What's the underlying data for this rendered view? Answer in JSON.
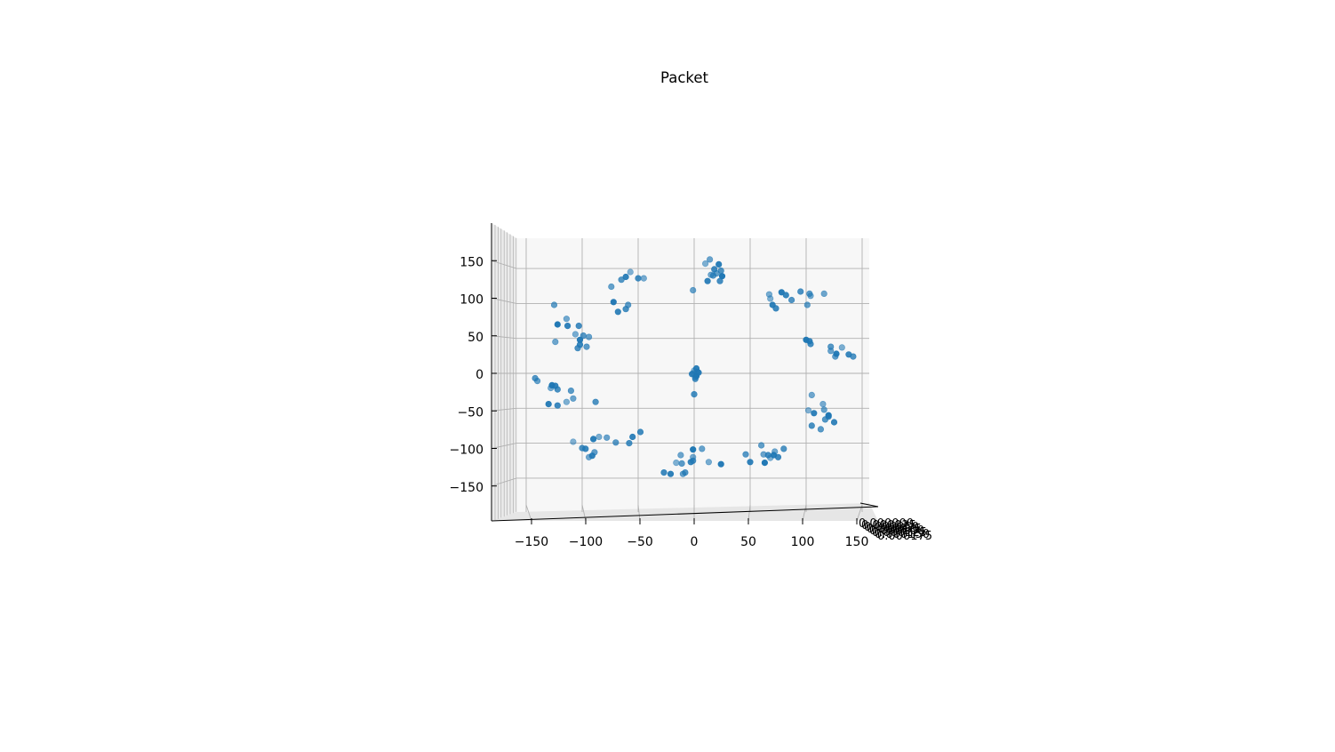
{
  "chart_data": {
    "type": "scatter",
    "projection": "3d",
    "title": "Packet",
    "xlabel": "",
    "ylabel": "",
    "zlabel": "",
    "xlim": [
      -175,
      165
    ],
    "ylim": [
      -185,
      185
    ],
    "x_ticks": [
      -150,
      -100,
      -50,
      0,
      50,
      100,
      150
    ],
    "y_ticks": [
      -150,
      -100,
      -50,
      0,
      50,
      100,
      150
    ],
    "z_tick_labels": [
      "0.000000",
      "0.000025",
      "0.000050",
      "0.000075",
      "0.000100",
      "0.000125",
      "0.000150",
      "0.000175"
    ],
    "grid": true,
    "legend": "none",
    "colors": {
      "marker": "#1f77b4",
      "pane": "#f2f2f2",
      "grid": "#b0b0b0",
      "axis": "#000000"
    },
    "series": [
      {
        "x": [
          -57,
          -61,
          -50,
          -65,
          -74,
          -45,
          -72,
          -68,
          -61,
          -59,
          14,
          10,
          22,
          18,
          24,
          20,
          15,
          25,
          12,
          23,
          17,
          -1,
          67,
          78,
          82,
          95,
          103,
          116,
          68,
          70,
          73,
          87,
          101,
          104,
          100,
          103,
          104,
          122,
          122,
          132,
          127,
          138,
          142,
          126,
          105,
          102,
          107,
          120,
          117,
          116,
          115,
          120,
          125,
          105,
          113,
          62,
          68,
          71,
          75,
          80,
          60,
          72,
          63,
          50,
          66,
          46,
          7,
          13,
          24,
          -3,
          -1,
          -11,
          -12,
          -16,
          -21,
          -27,
          -8,
          -10,
          -1,
          -1,
          -55,
          -58,
          -70,
          -78,
          -85,
          -90,
          -97,
          -100,
          -89,
          -94,
          -108,
          -91,
          -48,
          -142,
          -140,
          -128,
          -127,
          -124,
          -122,
          -110,
          -108,
          -114,
          -130,
          -122,
          -88,
          -125,
          -114,
          -122,
          -113,
          -103,
          -99,
          -94,
          -106,
          -102,
          -102,
          -104,
          -96,
          -124,
          0,
          2,
          -2,
          3,
          1,
          -1,
          2,
          4,
          0,
          1
        ],
        "y": [
          145,
          138,
          136,
          134,
          124,
          136,
          102,
          88,
          92,
          98,
          163,
          157,
          156,
          149,
          147,
          143,
          141,
          139,
          132,
          132,
          140,
          119,
          113,
          116,
          112,
          117,
          114,
          114,
          107,
          98,
          93,
          105,
          98,
          111,
          48,
          46,
          42,
          38,
          32,
          37,
          28,
          27,
          24,
          24,
          -31,
          -53,
          -57,
          -62,
          -66,
          -52,
          -44,
          -60,
          -70,
          -75,
          -80,
          -116,
          -121,
          -117,
          -120,
          -108,
          -103,
          -112,
          -128,
          -127,
          -117,
          -116,
          -108,
          -127,
          -130,
          -127,
          -125,
          -129,
          -117,
          -128,
          -144,
          -142,
          -142,
          -144,
          -120,
          -109,
          -91,
          -100,
          -99,
          -92,
          -91,
          -94,
          -108,
          -107,
          -113,
          -120,
          -98,
          -118,
          -84,
          -7,
          -11,
          -21,
          -17,
          -18,
          -23,
          -25,
          -36,
          -41,
          -44,
          -46,
          -41,
          98,
          78,
          70,
          68,
          68,
          54,
          52,
          56,
          48,
          41,
          36,
          38,
          45,
          4,
          7,
          -1,
          2,
          -6,
          0,
          -4,
          1,
          -30,
          -8
        ],
        "z": 0
      }
    ]
  }
}
